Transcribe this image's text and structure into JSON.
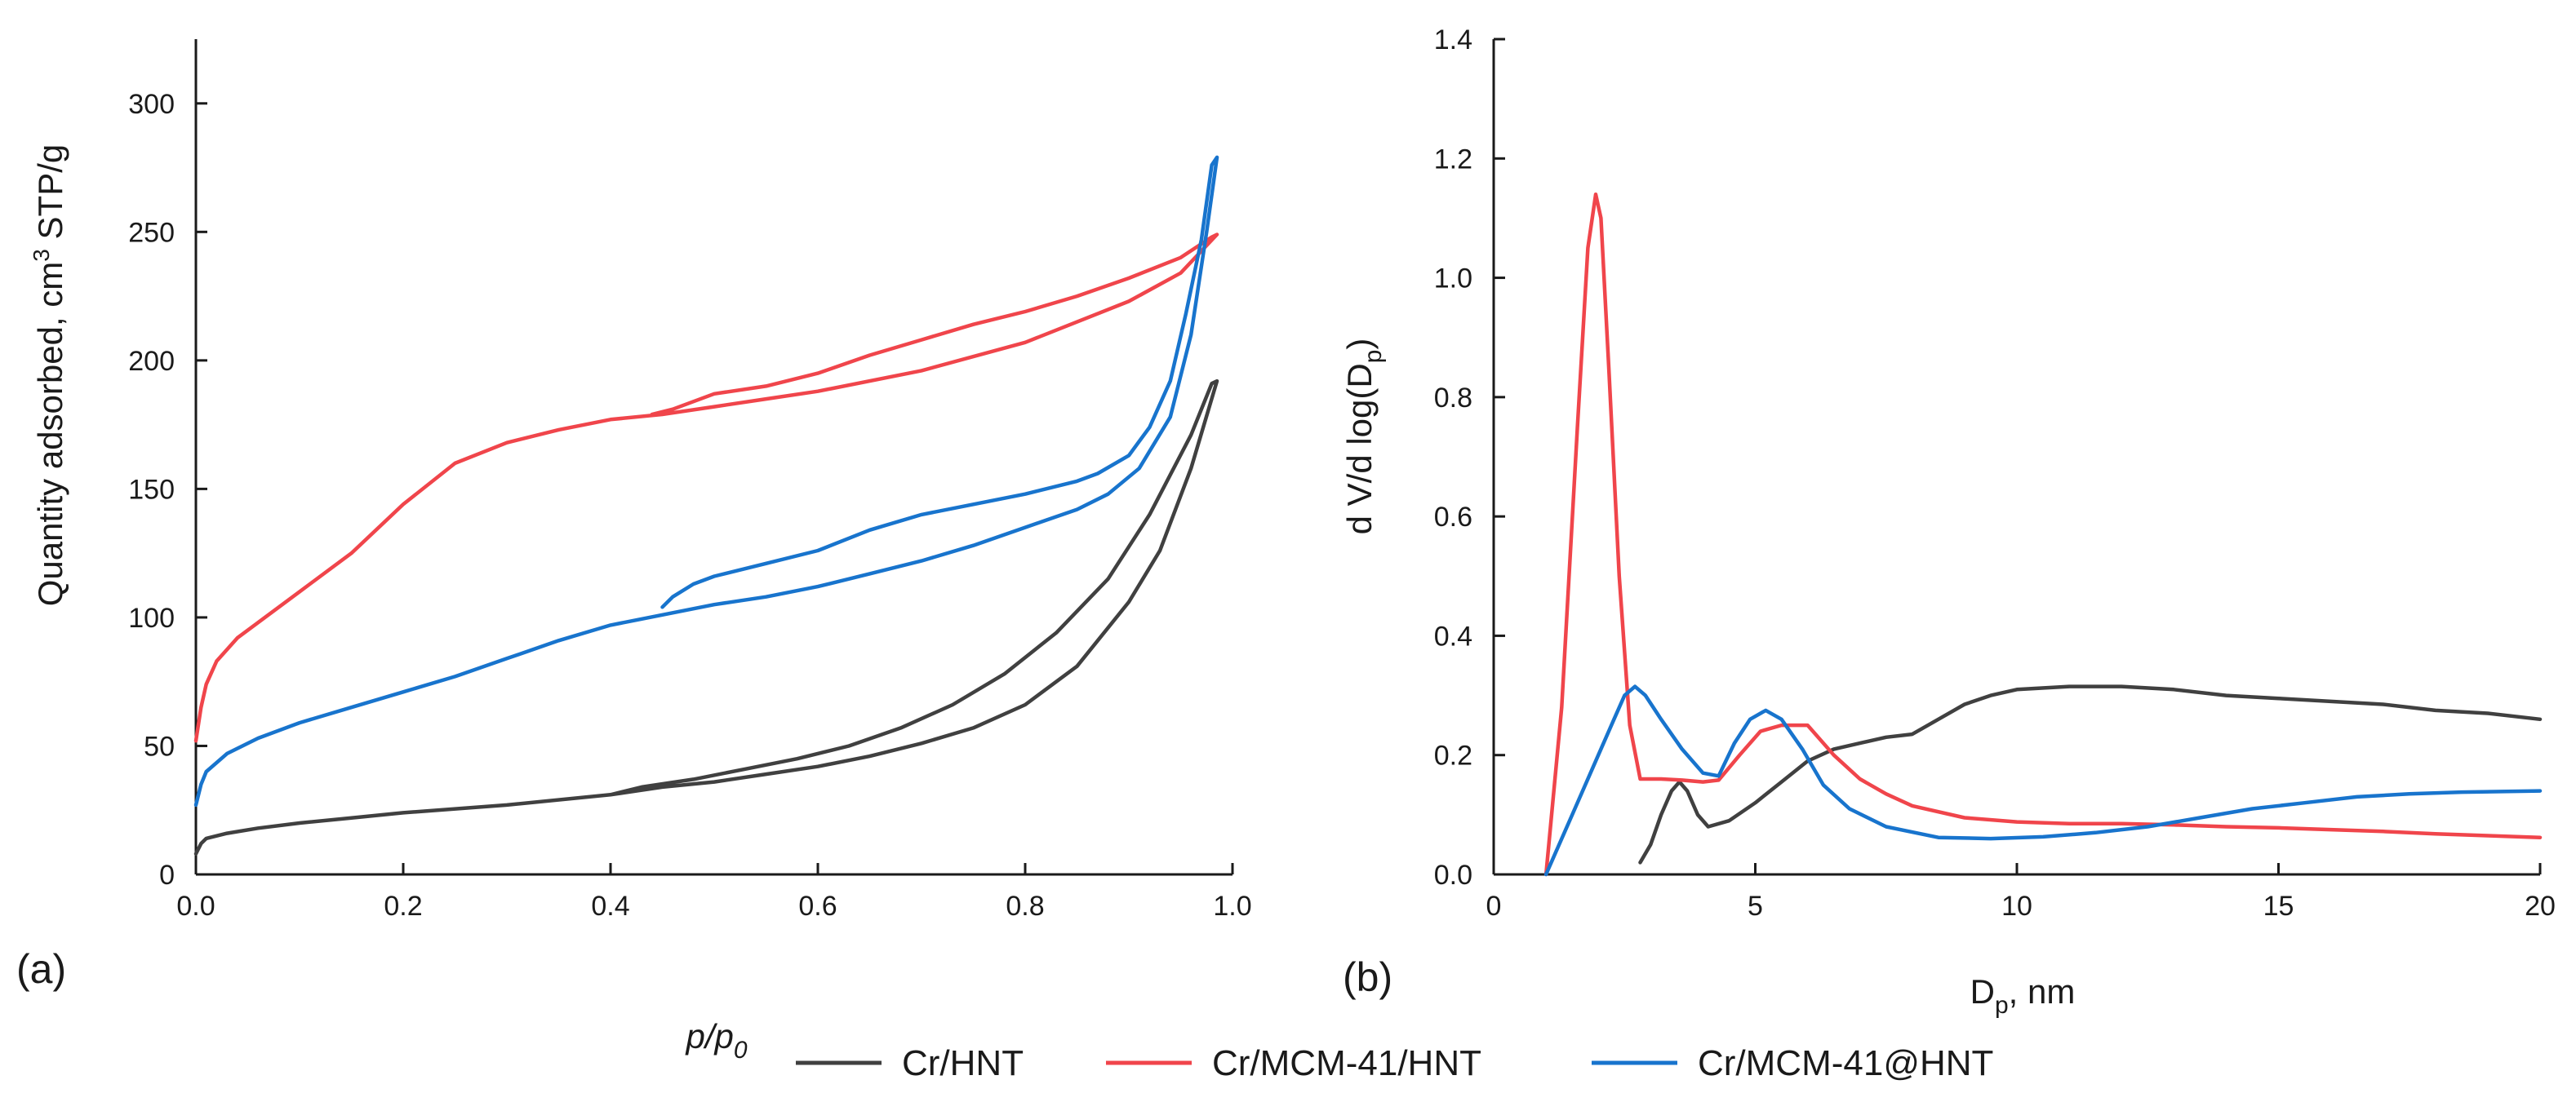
{
  "legend": [
    {
      "name": "Cr/HNT",
      "color": "#404040"
    },
    {
      "name": "Cr/MCM-41/HNT",
      "color": "#f0454b"
    },
    {
      "name": "Cr/MCM-41@HNT",
      "color": "#1874cd"
    }
  ],
  "chart_data": [
    {
      "type": "line",
      "panel_label": "(a)",
      "xlabel": "p/p0",
      "xlabel_parts": {
        "p": "p",
        "slash": "/p",
        "sub": "0"
      },
      "ylabel": "Quantity adsorbed, cm3 STP/g",
      "ylabel_parts": {
        "before": "Quantity adsorbed, cm",
        "sup": "3",
        "after": " STP/g"
      },
      "xlim": [
        0,
        1.0
      ],
      "ylim": [
        0,
        325
      ],
      "xticks": [
        0.0,
        0.2,
        0.4,
        0.6,
        0.8,
        1.0
      ],
      "xtick_labels": [
        "0.0",
        "0.2",
        "0.4",
        "0.6",
        "0.8",
        "1.0"
      ],
      "yticks": [
        0,
        50,
        100,
        150,
        200,
        250,
        300
      ],
      "ytick_labels": [
        "0",
        "50",
        "100",
        "150",
        "200",
        "250",
        "300"
      ],
      "grid": false,
      "series": [
        {
          "name": "Cr/HNT",
          "color": "#404040",
          "x": [
            0.0,
            0.005,
            0.01,
            0.03,
            0.06,
            0.1,
            0.15,
            0.2,
            0.3,
            0.4,
            0.45,
            0.5,
            0.55,
            0.6,
            0.65,
            0.7,
            0.75,
            0.8,
            0.85,
            0.9,
            0.93,
            0.96,
            0.985,
            0.98,
            0.96,
            0.92,
            0.88,
            0.83,
            0.78,
            0.73,
            0.68,
            0.63,
            0.58,
            0.53,
            0.48,
            0.43,
            0.4
          ],
          "y": [
            8,
            12,
            14,
            16,
            18,
            20,
            22,
            24,
            27,
            31,
            34,
            36,
            39,
            42,
            46,
            51,
            57,
            66,
            81,
            106,
            126,
            158,
            192,
            191,
            171,
            140,
            115,
            94,
            78,
            66,
            57,
            50,
            45,
            41,
            37,
            34,
            31
          ]
        },
        {
          "name": "Cr/MCM-41/HNT",
          "color": "#f0454b",
          "x": [
            0.0,
            0.005,
            0.01,
            0.02,
            0.04,
            0.06,
            0.1,
            0.15,
            0.2,
            0.25,
            0.3,
            0.35,
            0.4,
            0.45,
            0.5,
            0.55,
            0.6,
            0.7,
            0.8,
            0.9,
            0.95,
            0.985,
            0.98,
            0.95,
            0.9,
            0.85,
            0.8,
            0.75,
            0.7,
            0.65,
            0.6,
            0.55,
            0.5,
            0.46,
            0.44
          ],
          "y": [
            52,
            65,
            74,
            83,
            92,
            98,
            110,
            125,
            144,
            160,
            168,
            173,
            177,
            179,
            182,
            185,
            188,
            196,
            207,
            223,
            234,
            249,
            248,
            240,
            232,
            225,
            219,
            214,
            208,
            202,
            195,
            190,
            187,
            181,
            179
          ]
        },
        {
          "name": "Cr/MCM-41@HNT",
          "color": "#1874cd",
          "x": [
            0.0,
            0.005,
            0.01,
            0.03,
            0.06,
            0.1,
            0.15,
            0.2,
            0.25,
            0.3,
            0.35,
            0.4,
            0.45,
            0.5,
            0.55,
            0.6,
            0.65,
            0.7,
            0.75,
            0.8,
            0.85,
            0.88,
            0.91,
            0.94,
            0.96,
            0.975,
            0.985,
            0.98,
            0.97,
            0.955,
            0.94,
            0.92,
            0.9,
            0.87,
            0.85,
            0.8,
            0.75,
            0.7,
            0.65,
            0.6,
            0.55,
            0.5,
            0.48,
            0.46,
            0.45
          ],
          "y": [
            27,
            35,
            40,
            47,
            53,
            59,
            65,
            71,
            77,
            84,
            91,
            97,
            101,
            105,
            108,
            112,
            117,
            122,
            128,
            135,
            142,
            148,
            158,
            178,
            210,
            250,
            279,
            276,
            247,
            218,
            192,
            174,
            163,
            156,
            153,
            148,
            144,
            140,
            134,
            126,
            121,
            116,
            113,
            108,
            104
          ]
        }
      ]
    },
    {
      "type": "line",
      "panel_label": "(b)",
      "xlabel": "Dp, nm",
      "xlabel_parts": {
        "base": "D",
        "sub": "p",
        "after": ", nm"
      },
      "ylabel": "d V/d log(Dp)",
      "ylabel_parts": {
        "before": "d V/d log(D",
        "sub": "p",
        "after": ")"
      },
      "xlim": [
        0,
        20
      ],
      "ylim": [
        0,
        1.4
      ],
      "xticks": [
        0,
        5,
        10,
        15,
        20
      ],
      "xtick_labels": [
        "0",
        "5",
        "10",
        "15",
        "20"
      ],
      "yticks": [
        0,
        0.2,
        0.4,
        0.6,
        0.8,
        1.0,
        1.2,
        1.4
      ],
      "ytick_labels": [
        "0.0",
        "0.2",
        "0.4",
        "0.6",
        "0.8",
        "1.0",
        "1.2",
        "1.4"
      ],
      "grid": false,
      "series": [
        {
          "name": "Cr/HNT",
          "color": "#404040",
          "x": [
            2.8,
            3.0,
            3.2,
            3.4,
            3.55,
            3.7,
            3.9,
            4.1,
            4.5,
            5.0,
            5.5,
            6.0,
            6.5,
            7.0,
            7.5,
            8.0,
            8.5,
            9.0,
            9.5,
            10.0,
            11.0,
            12.0,
            13.0,
            14.0,
            15.0,
            16.0,
            17.0,
            18.0,
            19.0,
            20.0
          ],
          "y": [
            0.02,
            0.05,
            0.1,
            0.14,
            0.155,
            0.14,
            0.1,
            0.08,
            0.09,
            0.12,
            0.155,
            0.19,
            0.21,
            0.22,
            0.23,
            0.235,
            0.26,
            0.285,
            0.3,
            0.31,
            0.315,
            0.315,
            0.31,
            0.3,
            0.295,
            0.29,
            0.285,
            0.275,
            0.27,
            0.26
          ]
        },
        {
          "name": "Cr/MCM-41/HNT",
          "color": "#f0454b",
          "x": [
            1.0,
            1.3,
            1.6,
            1.8,
            1.95,
            2.05,
            2.2,
            2.4,
            2.6,
            2.8,
            3.2,
            3.6,
            4.0,
            4.3,
            4.7,
            5.1,
            5.5,
            6.0,
            6.5,
            7.0,
            7.5,
            8.0,
            9.0,
            10.0,
            11.0,
            12.0,
            13.0,
            14.0,
            15.0,
            16.0,
            17.0,
            18.0,
            19.0,
            20.0
          ],
          "y": [
            0.0,
            0.28,
            0.75,
            1.05,
            1.14,
            1.1,
            0.85,
            0.5,
            0.25,
            0.16,
            0.16,
            0.158,
            0.155,
            0.158,
            0.2,
            0.24,
            0.25,
            0.25,
            0.2,
            0.16,
            0.135,
            0.115,
            0.095,
            0.088,
            0.085,
            0.085,
            0.083,
            0.08,
            0.078,
            0.075,
            0.072,
            0.068,
            0.065,
            0.062
          ]
        },
        {
          "name": "Cr/MCM-41@HNT",
          "color": "#1874cd",
          "x": [
            1.0,
            1.5,
            2.0,
            2.3,
            2.5,
            2.7,
            2.9,
            3.2,
            3.6,
            4.0,
            4.3,
            4.6,
            4.9,
            5.2,
            5.5,
            5.9,
            6.3,
            6.8,
            7.5,
            8.5,
            9.5,
            10.5,
            11.5,
            12.5,
            13.5,
            14.5,
            15.5,
            16.5,
            17.5,
            18.5,
            20.0
          ],
          "y": [
            0.0,
            0.1,
            0.2,
            0.26,
            0.3,
            0.315,
            0.3,
            0.26,
            0.21,
            0.17,
            0.165,
            0.22,
            0.26,
            0.275,
            0.26,
            0.21,
            0.15,
            0.11,
            0.08,
            0.062,
            0.06,
            0.063,
            0.07,
            0.08,
            0.095,
            0.11,
            0.12,
            0.13,
            0.135,
            0.138,
            0.14
          ]
        }
      ]
    }
  ]
}
